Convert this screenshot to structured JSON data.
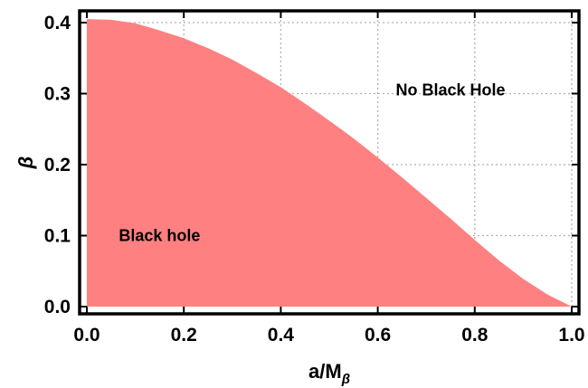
{
  "chart_data": {
    "type": "area",
    "title": "",
    "xlabel_base": "a/M",
    "xlabel_sub": "β",
    "ylabel": "β",
    "xlim": [
      0.0,
      1.0
    ],
    "ylim": [
      0.0,
      0.42
    ],
    "x_ticks": [
      0.0,
      0.2,
      0.4,
      0.6,
      0.8,
      1.0
    ],
    "x_tick_labels": [
      "0.0",
      "0.2",
      "0.4",
      "0.6",
      "0.8",
      "1.0"
    ],
    "y_ticks": [
      0.0,
      0.1,
      0.2,
      0.3,
      0.4
    ],
    "y_tick_labels": [
      "0.0",
      "0.1",
      "0.2",
      "0.3",
      "0.4"
    ],
    "grid": true,
    "region_color": "#ff8080",
    "series": [
      {
        "x": [
          0.0,
          0.05,
          0.1,
          0.15,
          0.2,
          0.25,
          0.3,
          0.35,
          0.4,
          0.45,
          0.5,
          0.55,
          0.6,
          0.65,
          0.7,
          0.75,
          0.8,
          0.85,
          0.9,
          0.95,
          1.0
        ],
        "values": [
          0.405,
          0.404,
          0.399,
          0.389,
          0.378,
          0.364,
          0.348,
          0.329,
          0.309,
          0.286,
          0.262,
          0.237,
          0.21,
          0.182,
          0.153,
          0.124,
          0.094,
          0.065,
          0.039,
          0.017,
          0.0
        ]
      }
    ],
    "annotations": [
      {
        "text": "No Black Hole",
        "x": 0.75,
        "y": 0.305
      },
      {
        "text": "Black hole",
        "x": 0.15,
        "y": 0.1
      }
    ]
  }
}
